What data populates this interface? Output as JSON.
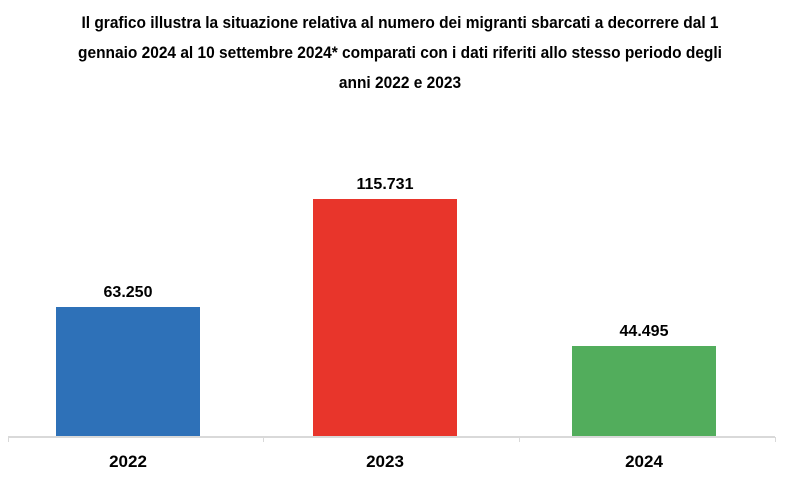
{
  "chart_data": {
    "type": "bar",
    "title": "Il grafico illustra la situazione relativa al numero dei migranti sbarcati a decorrere dal 1 gennaio 2024 al 10 settembre 2024* comparati con i dati riferiti allo stesso periodo degli anni 2022 e 2023",
    "title_lines": [
      "Il grafico illustra la situazione relativa al numero dei migranti sbarcati a decorrere dal 1",
      "gennaio 2024 al 10 settembre 2024* comparati con i dati riferiti allo stesso periodo degli",
      "anni 2022 e 2023"
    ],
    "categories": [
      "2022",
      "2023",
      "2024"
    ],
    "values": [
      63250,
      115731,
      44495
    ],
    "bars": [
      {
        "category": "2022",
        "value": 63250,
        "label": "63.250",
        "color": "#2e71b8"
      },
      {
        "category": "2023",
        "value": 115731,
        "label": "115.731",
        "color": "#e8352b"
      },
      {
        "category": "2024",
        "value": 44495,
        "label": "44.495",
        "color": "#52ad5c"
      }
    ],
    "xlabel": "",
    "ylabel": "",
    "ylim": [
      0,
      120000
    ],
    "grid": false,
    "legend": false,
    "axis_color": "#d9d9d9",
    "text_color": "#000000",
    "data_labels": true
  }
}
